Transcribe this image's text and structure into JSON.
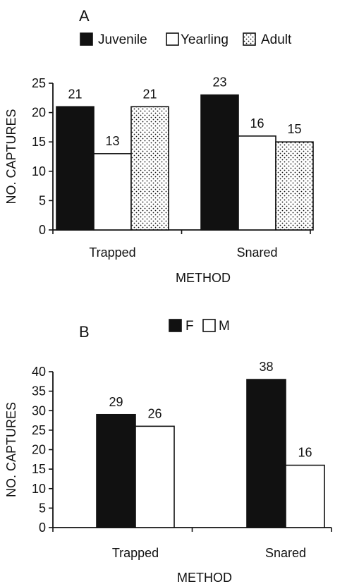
{
  "chart_data": [
    {
      "type": "bar",
      "panel_label": "A",
      "categories": [
        "Trapped",
        "Snared"
      ],
      "series": [
        {
          "name": "Juvenile",
          "values": [
            21,
            23
          ],
          "fill": "solid-black"
        },
        {
          "name": "Yearling",
          "values": [
            13,
            16
          ],
          "fill": "white"
        },
        {
          "name": "Adult",
          "values": [
            21,
            15
          ],
          "fill": "dotted"
        }
      ],
      "xlabel": "METHOD",
      "ylabel": "NO. CAPTURES",
      "ylim": [
        0,
        25
      ],
      "yticks": [
        0,
        5,
        10,
        15,
        20,
        25
      ],
      "legend_position": "top",
      "grid": false
    },
    {
      "type": "bar",
      "panel_label": "B",
      "categories": [
        "Trapped",
        "Snared"
      ],
      "series": [
        {
          "name": "F",
          "values": [
            29,
            38
          ],
          "fill": "solid-black"
        },
        {
          "name": "M",
          "values": [
            26,
            16
          ],
          "fill": "white"
        }
      ],
      "xlabel": "METHOD",
      "ylabel": "NO. CAPTURES",
      "ylim": [
        0,
        40
      ],
      "yticks": [
        0,
        5,
        10,
        15,
        20,
        25,
        30,
        35,
        40
      ],
      "legend_position": "top",
      "grid": false
    }
  ]
}
